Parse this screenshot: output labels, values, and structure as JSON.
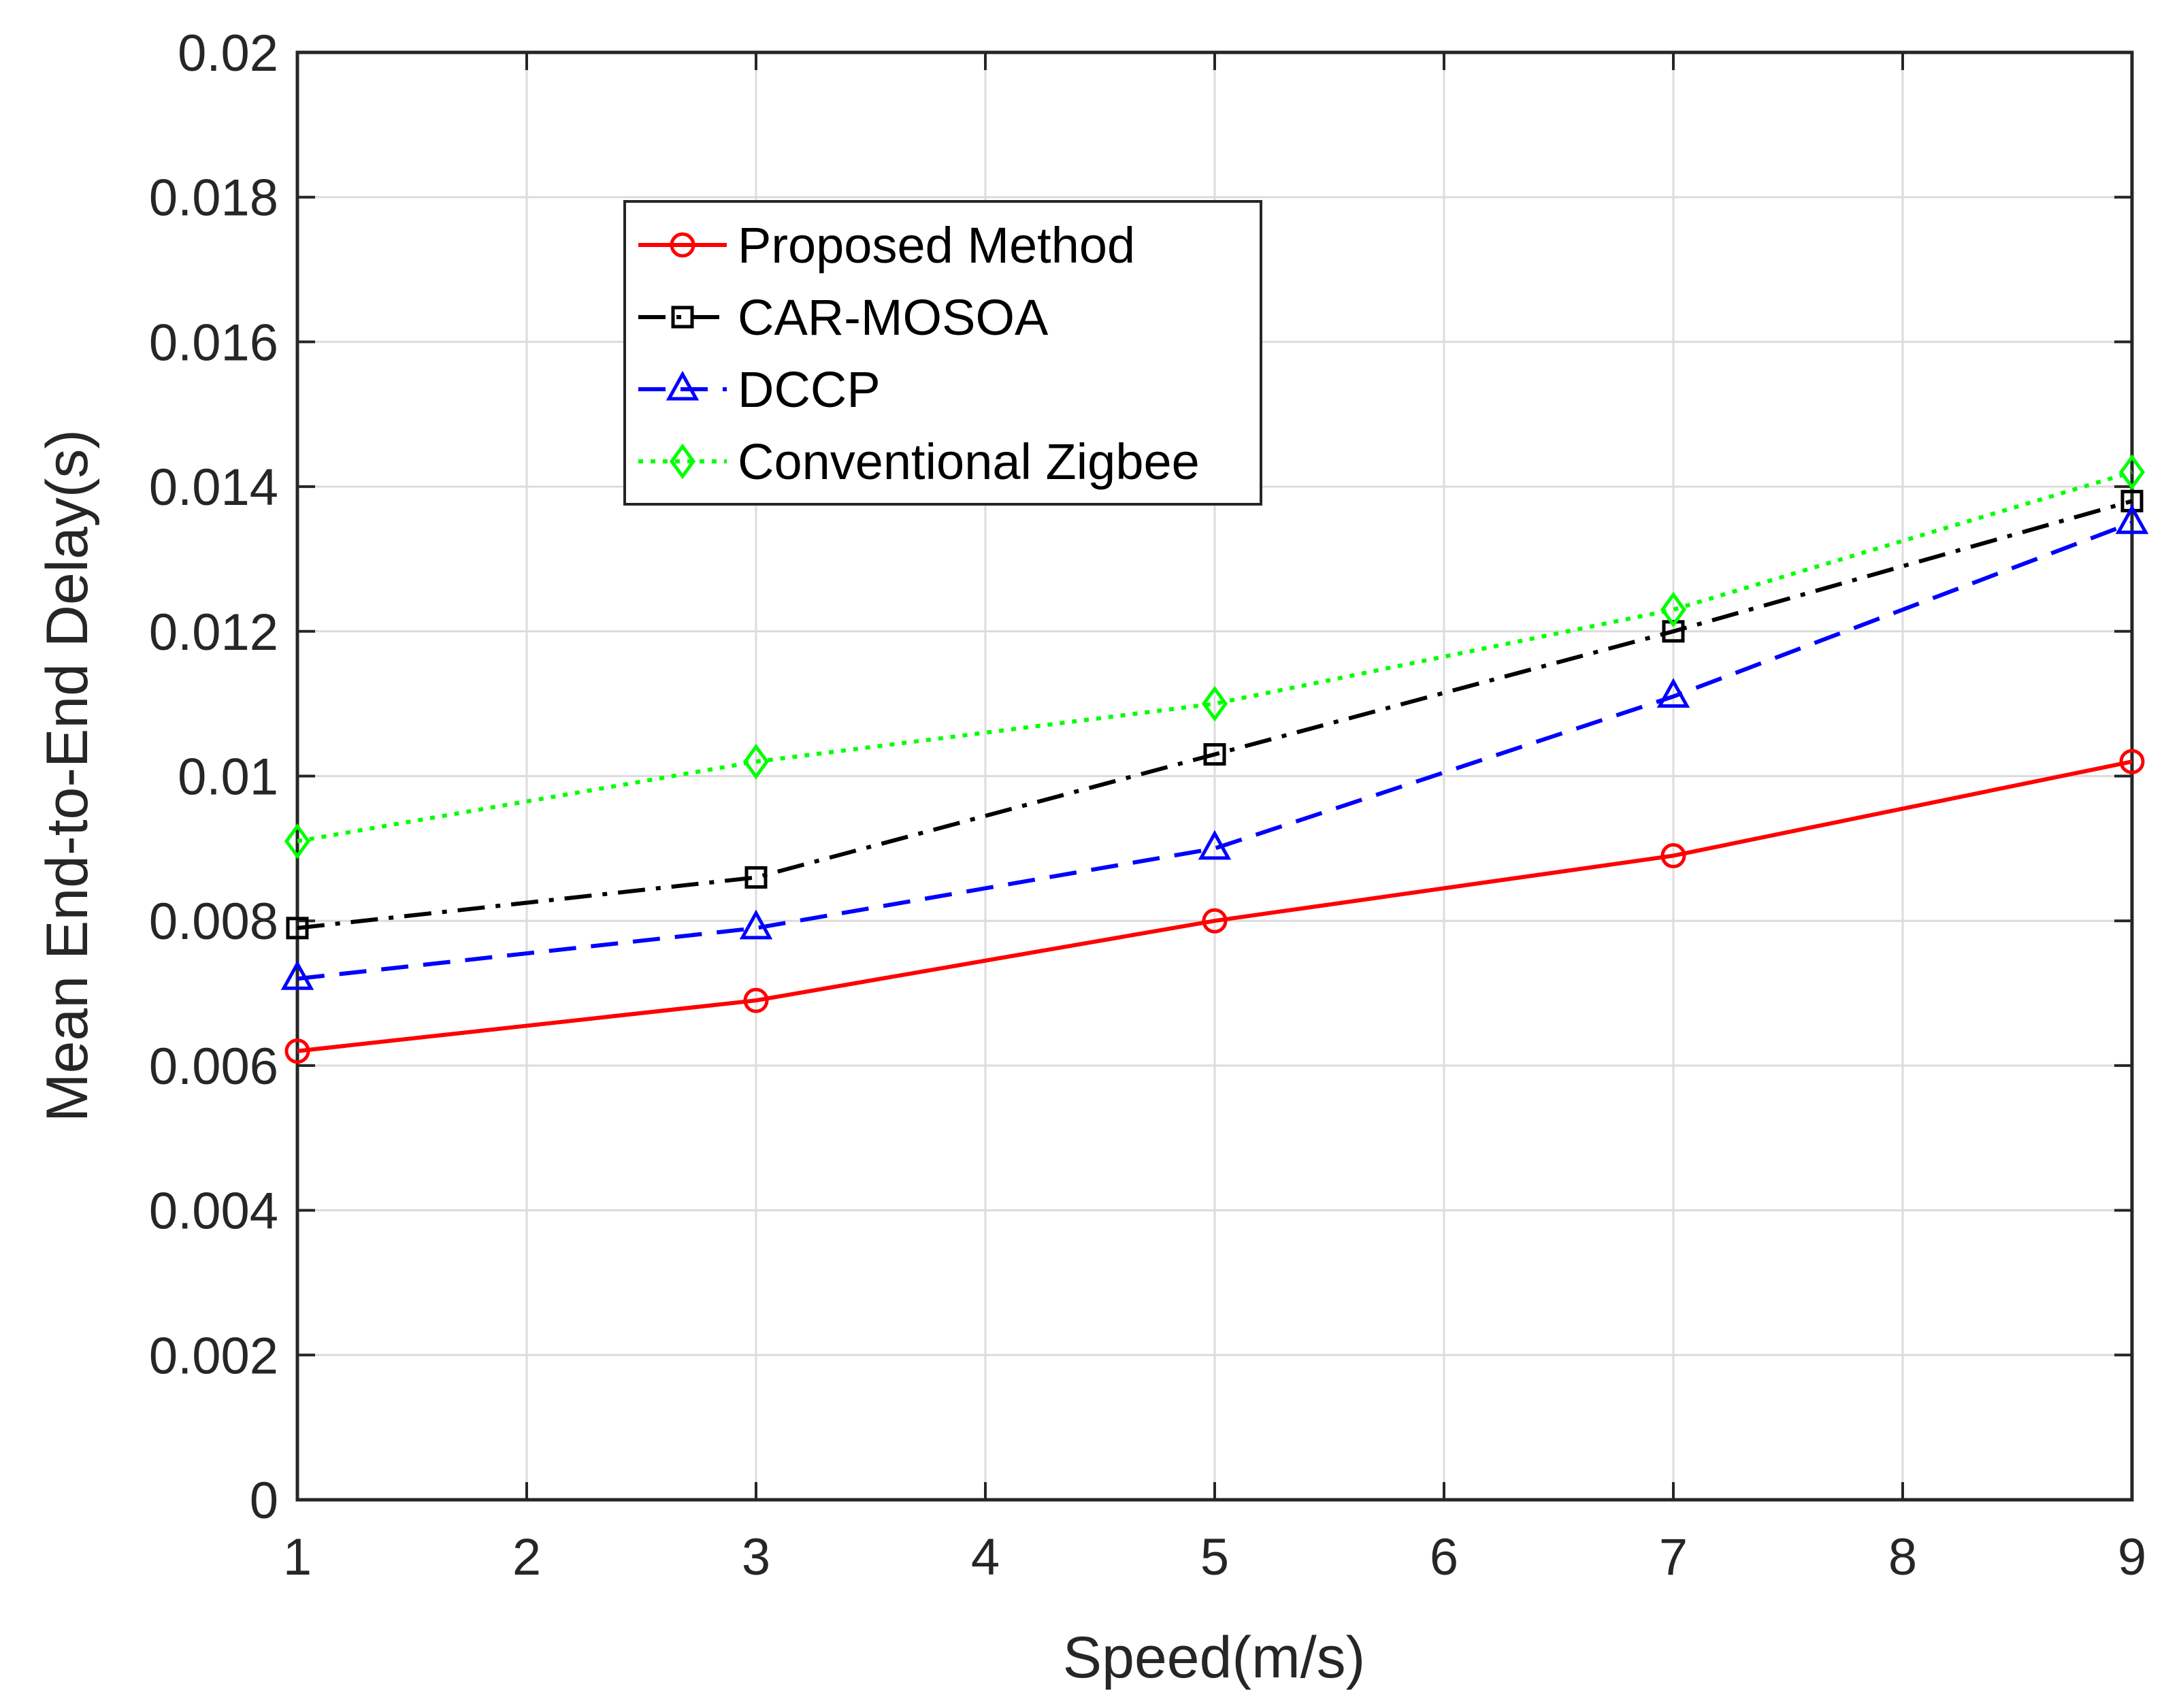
{
  "chart_data": {
    "type": "line",
    "title": "",
    "xlabel": "Speed(m/s)",
    "ylabel": "Mean End-to-End Delay(s)",
    "xlim": [
      1,
      9
    ],
    "ylim": [
      0,
      0.02
    ],
    "grid": true,
    "legend_position": "top-left",
    "x": [
      1,
      3,
      5,
      7,
      9
    ],
    "xticks": [
      1,
      2,
      3,
      4,
      5,
      6,
      7,
      8,
      9
    ],
    "xtick_labels": [
      "1",
      "2",
      "3",
      "4",
      "5",
      "6",
      "7",
      "8",
      "9"
    ],
    "yticks": [
      0,
      0.002,
      0.004,
      0.006,
      0.008,
      0.01,
      0.012,
      0.014,
      0.016,
      0.018,
      0.02
    ],
    "ytick_labels": [
      "0",
      "0.002",
      "0.004",
      "0.006",
      "0.008",
      "0.01",
      "0.012",
      "0.014",
      "0.016",
      "0.018",
      "0.02"
    ],
    "series": [
      {
        "name": "Proposed Method",
        "values": [
          0.0062,
          0.0069,
          0.008,
          0.0089,
          0.0102
        ],
        "color": "#ff0000",
        "marker": "circle",
        "dash": "solid"
      },
      {
        "name": "CAR-MOSOA",
        "values": [
          0.0079,
          0.0086,
          0.0103,
          0.012,
          0.0138
        ],
        "color": "#000000",
        "marker": "square",
        "dash": "dashdot"
      },
      {
        "name": "DCCP",
        "values": [
          0.0072,
          0.0079,
          0.009,
          0.0111,
          0.0135
        ],
        "color": "#0000ff",
        "marker": "triangle",
        "dash": "dashed"
      },
      {
        "name": "Conventional Zigbee",
        "values": [
          0.0091,
          0.0102,
          0.011,
          0.0123,
          0.0142
        ],
        "color": "#00ff00",
        "marker": "diamond",
        "dash": "dotted"
      }
    ]
  }
}
